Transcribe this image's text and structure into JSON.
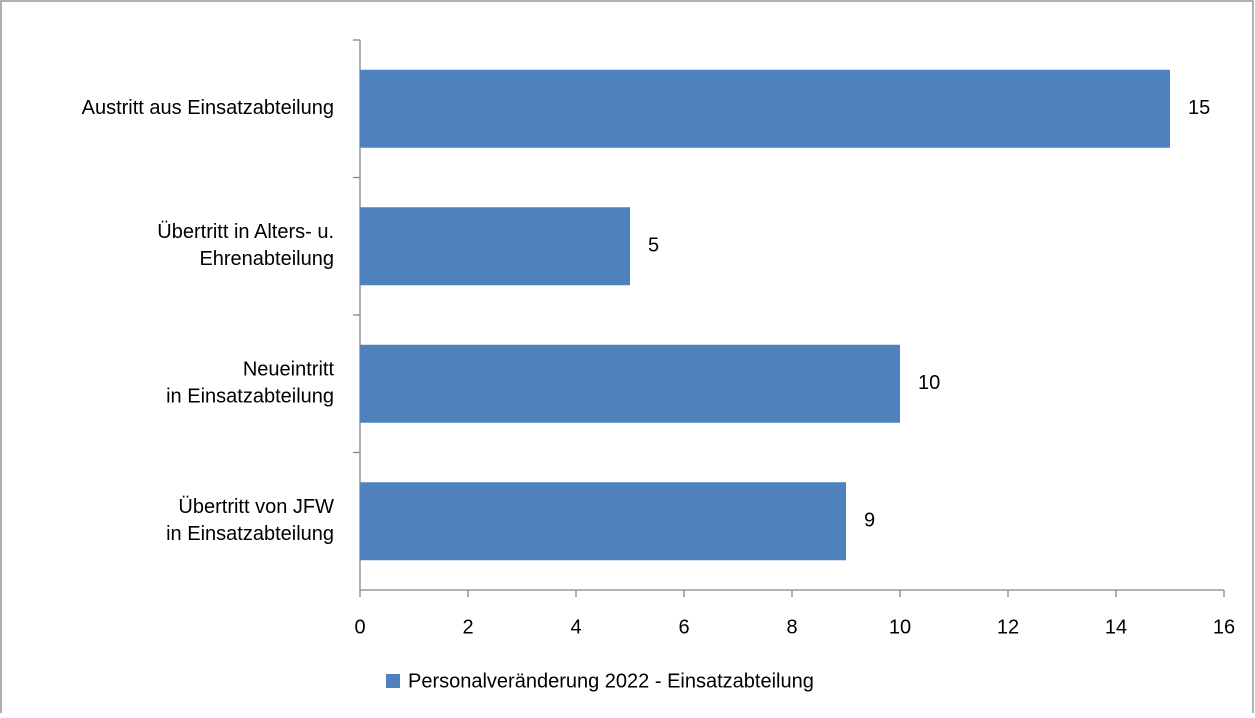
{
  "chart_data": {
    "type": "bar",
    "orientation": "horizontal",
    "categories": [
      "Austritt aus Einsatzabteilung",
      "Übertritt in Alters- u.\nEhrenabteilung",
      "Neueintritt\nin Einsatzabteilung",
      "Übertritt von JFW\nin Einsatzabteilung"
    ],
    "series": [
      {
        "name": "Personalveränderung 2022 - Einsatzabteilung",
        "color": "#4f81bd",
        "values": [
          15,
          5,
          10,
          9
        ]
      }
    ],
    "xlim": [
      0,
      16
    ],
    "xticks": [
      0,
      2,
      4,
      6,
      8,
      10,
      12,
      14,
      16
    ],
    "grid": false,
    "legend": "bottom"
  }
}
